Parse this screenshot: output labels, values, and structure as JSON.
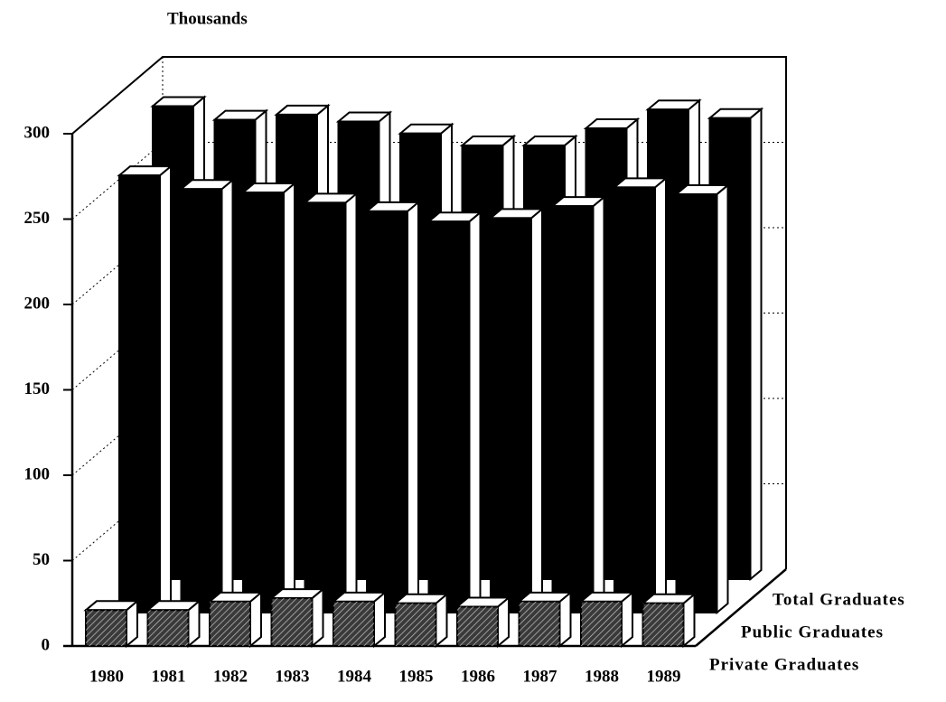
{
  "chart_data": {
    "type": "bar3d",
    "y_axis_label": "Thousands",
    "categories": [
      "1980",
      "1981",
      "1982",
      "1983",
      "1984",
      "1985",
      "1986",
      "1987",
      "1988",
      "1989"
    ],
    "series": [
      {
        "name": "Private Graduates",
        "color": "#3a3a3a",
        "values": [
          21,
          21,
          26,
          28,
          26,
          25,
          23,
          26,
          26,
          25
        ]
      },
      {
        "name": "Public Graduates",
        "color": "#000000",
        "values": [
          256,
          248,
          246,
          240,
          235,
          229,
          231,
          238,
          249,
          245
        ]
      },
      {
        "name": "Total Graduates",
        "color": "#000000",
        "values": [
          277,
          269,
          272,
          268,
          261,
          254,
          254,
          264,
          275,
          270
        ]
      }
    ],
    "ylim": [
      0,
      300
    ],
    "yticks": [
      0,
      50,
      100,
      150,
      200,
      250,
      300
    ],
    "grid": true
  }
}
